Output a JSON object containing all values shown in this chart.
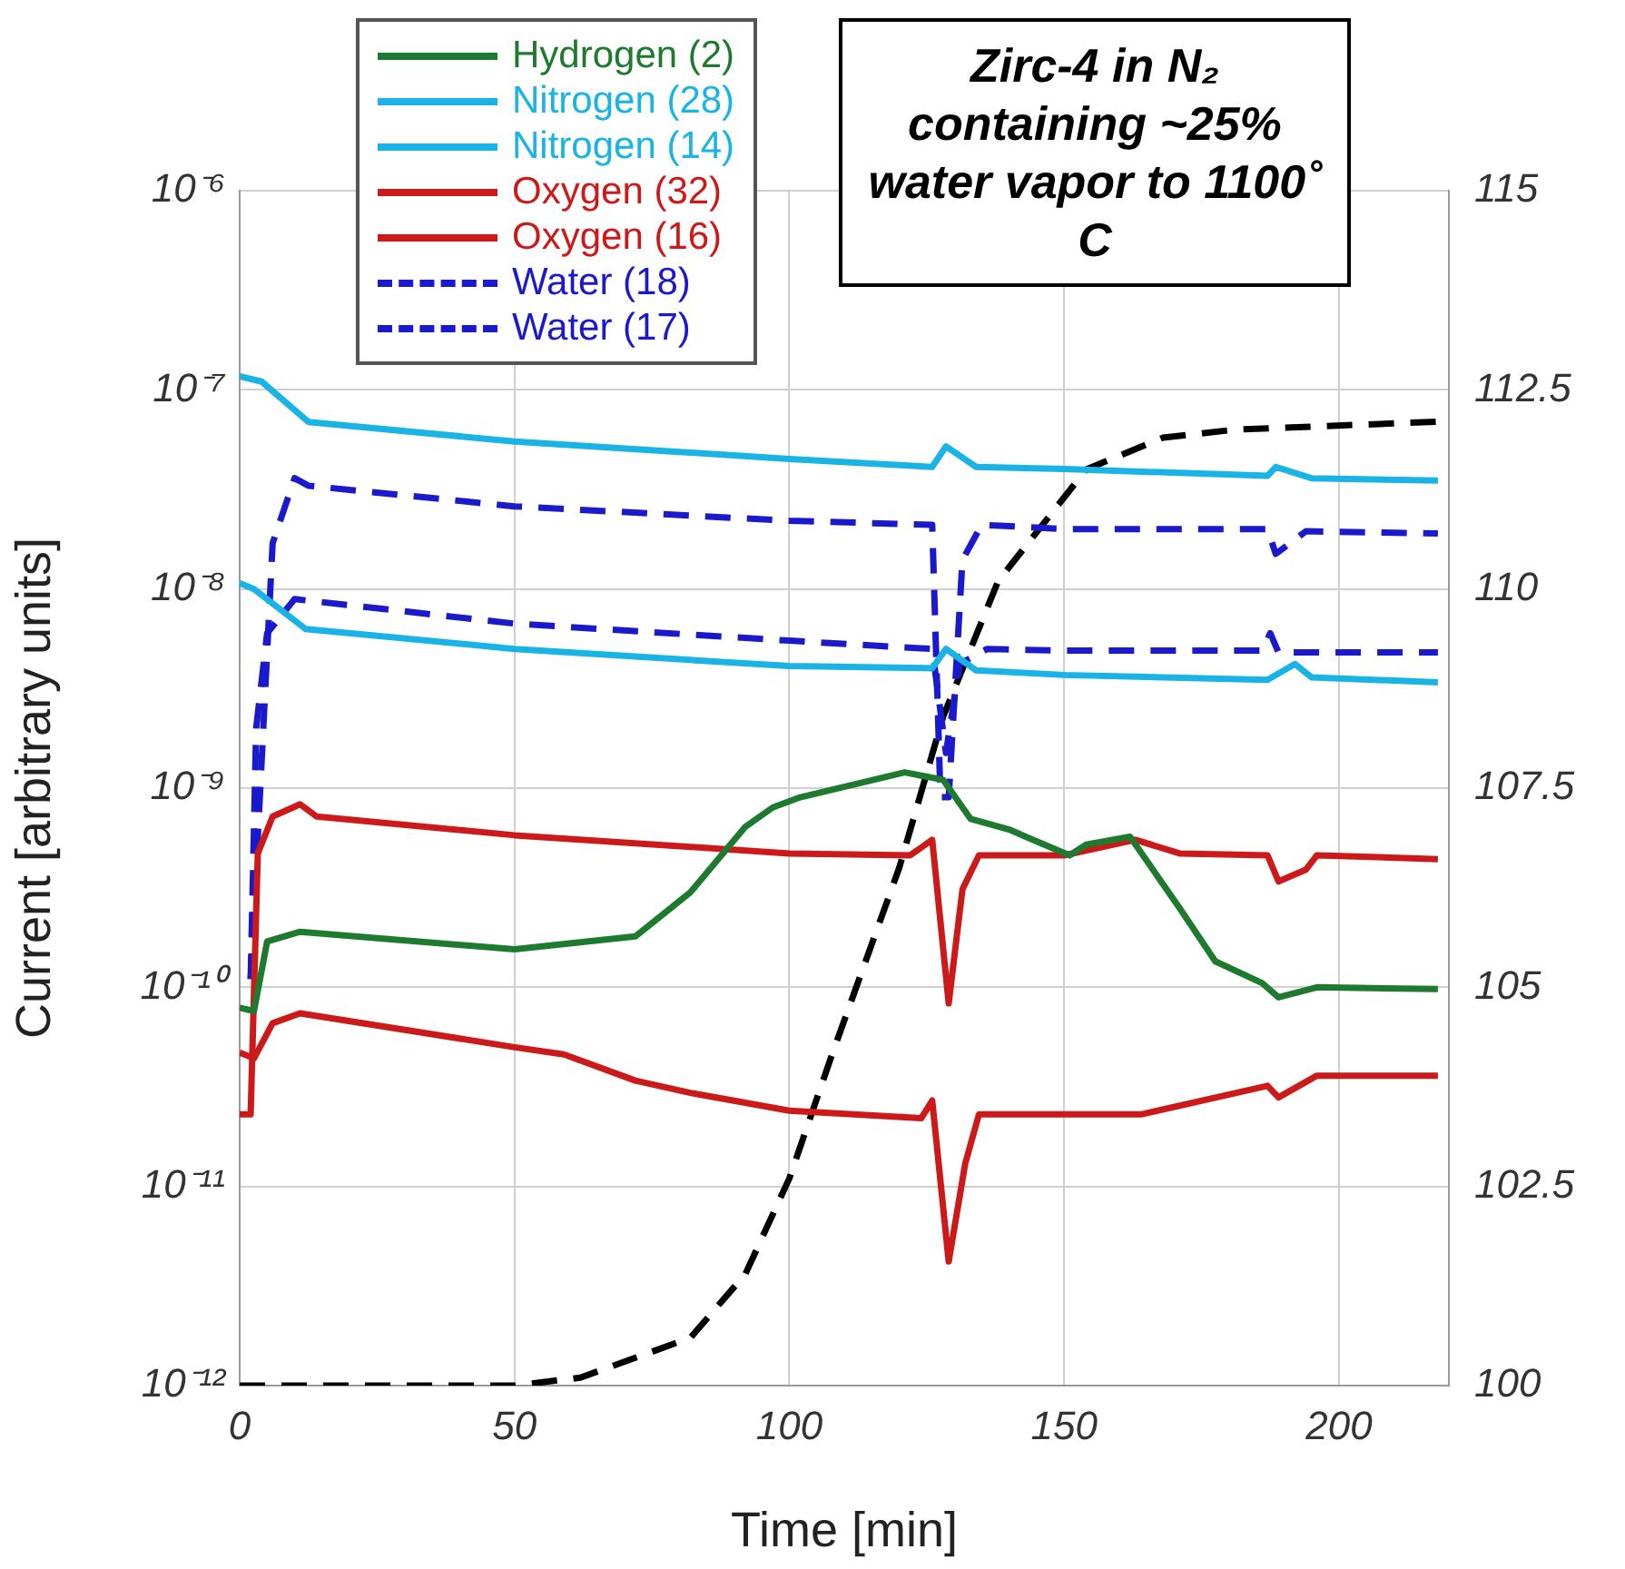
{
  "chart_data": {
    "type": "line",
    "xlabel": "Time [min]",
    "ylabel": "Current [arbitrary units]",
    "annotations": [
      "Zirc-4 in N₂ containing ~25% water vapor to 1100˚ C"
    ],
    "log": "y",
    "grid": true,
    "legend": "top left",
    "marker": "none",
    "xlim": [
      0,
      220
    ],
    "xticks": [
      0,
      50,
      100,
      150,
      200
    ],
    "ylim": [
      1e-12,
      1e-06
    ],
    "yticks": [
      {
        "value": 1e-12,
        "label": "10⁻¹²"
      },
      {
        "value": 1e-11,
        "label": "10⁻¹¹"
      },
      {
        "value": 1e-10,
        "label": "10⁻¹⁰"
      },
      {
        "value": 1e-09,
        "label": "10⁻⁹"
      },
      {
        "value": 1e-08,
        "label": "10⁻⁸"
      },
      {
        "value": 1e-07,
        "label": "10⁻⁷"
      },
      {
        "value": 1e-06,
        "label": "10⁻⁶"
      }
    ],
    "y2lim": [
      100,
      115
    ],
    "y2ticks": [
      100,
      102.5,
      105,
      107.5,
      110,
      112.5,
      115
    ],
    "series": [
      {
        "name": "Hydrogen (2)",
        "color": "#1e7a2e",
        "line_style": "solid",
        "x": [
          0,
          2.6,
          5,
          11,
          50,
          72,
          82,
          92,
          97,
          102,
          121,
          128,
          133,
          140,
          143,
          151,
          154,
          162,
          171,
          177.5,
          186,
          189,
          196,
          218
        ],
        "values": [
          7.9e-11,
          7.6e-11,
          1.7e-10,
          1.9e-10,
          1.55e-10,
          1.8e-10,
          3e-10,
          6.4e-10,
          8e-10,
          9e-10,
          1.2e-09,
          1.1e-09,
          7e-10,
          6.2e-10,
          5.7e-10,
          4.6e-10,
          5.2e-10,
          5.7e-10,
          2.5e-10,
          1.35e-10,
          1.05e-10,
          8.9e-11,
          1e-10,
          9.8e-11
        ]
      },
      {
        "name": "Nitrogen (28)",
        "color": "#1ab3e6",
        "line_style": "solid",
        "x": [
          0,
          4,
          12.5,
          50,
          100,
          126,
          128.5,
          134,
          150,
          187,
          188.5,
          195,
          218
        ],
        "values": [
          1.17e-07,
          1.1e-07,
          6.9e-08,
          5.5e-08,
          4.5e-08,
          4.1e-08,
          5.2e-08,
          4.1e-08,
          4e-08,
          3.7e-08,
          4.1e-08,
          3.6e-08,
          3.5e-08
        ]
      },
      {
        "name": "Nitrogen (14)",
        "color": "#1ab3e6",
        "line_style": "solid",
        "x": [
          0,
          2.6,
          12,
          50,
          100,
          126,
          128.5,
          134,
          150,
          187,
          192,
          195,
          218
        ],
        "values": [
          1.07e-08,
          1e-08,
          6.3e-09,
          5e-09,
          4.1e-09,
          4e-09,
          5e-09,
          3.9e-09,
          3.7e-09,
          3.5e-09,
          4.2e-09,
          3.6e-09,
          3.4e-09
        ]
      },
      {
        "name": "Oxygen (32)",
        "color": "#cc1a1a",
        "line_style": "solid",
        "x": [
          0,
          2,
          3.3,
          6,
          11,
          14,
          50,
          100,
          122,
          126,
          129,
          131.5,
          134.5,
          150,
          163,
          171,
          187,
          189,
          194,
          196,
          218
        ],
        "values": [
          2.3e-11,
          2.3e-11,
          4.7e-10,
          7.2e-10,
          8.3e-10,
          7.2e-10,
          5.8e-10,
          4.7e-10,
          4.6e-10,
          5.5e-10,
          8.3e-11,
          3.1e-10,
          4.6e-10,
          4.6e-10,
          5.5e-10,
          4.7e-10,
          4.6e-10,
          3.4e-10,
          3.9e-10,
          4.6e-10,
          4.4e-10
        ]
      },
      {
        "name": "Oxygen (16)",
        "color": "#cc1a1a",
        "line_style": "solid",
        "x": [
          0,
          2.6,
          6,
          11,
          50,
          59,
          72,
          82,
          100,
          124,
          126,
          129,
          132,
          134.5,
          150,
          164,
          187,
          189,
          196,
          218
        ],
        "values": [
          4.7e-11,
          4.4e-11,
          6.6e-11,
          7.4e-11,
          5e-11,
          4.6e-11,
          3.4e-11,
          2.95e-11,
          2.4e-11,
          2.2e-11,
          2.7e-11,
          4.2e-12,
          1.3e-11,
          2.3e-11,
          2.3e-11,
          2.3e-11,
          3.2e-11,
          2.8e-11,
          3.6e-11,
          3.6e-11
        ]
      },
      {
        "name": "Water (18)",
        "color": "#1a1acc",
        "line_style": "dashed",
        "x": [
          2,
          6,
          10,
          12.5,
          50,
          100,
          126,
          127.5,
          129,
          131.5,
          135,
          150,
          187,
          188.5,
          194,
          218
        ],
        "values": [
          1.1e-10,
          1.7e-08,
          3.6e-08,
          3.3e-08,
          2.6e-08,
          2.2e-08,
          2.1e-08,
          9e-10,
          9e-10,
          1.4e-08,
          2.1e-08,
          2e-08,
          2e-08,
          1.5e-08,
          1.95e-08,
          1.9e-08
        ]
      },
      {
        "name": "Water (17)",
        "color": "#1a1acc",
        "line_style": "dashed",
        "x": [
          2,
          3,
          5,
          10,
          50,
          100,
          126,
          128.5,
          131,
          136,
          150,
          186,
          187.5,
          189,
          218
        ],
        "values": [
          1.1e-10,
          2e-09,
          6e-09,
          8.9e-09,
          6.7e-09,
          5.5e-09,
          5e-09,
          1.5e-09,
          4.2e-09,
          5e-09,
          4.9e-09,
          4.9e-09,
          6e-09,
          4.8e-09,
          4.8e-09
        ]
      },
      {
        "color": "#000000",
        "line_style": "dashed",
        "axis": "y2",
        "x": [
          0,
          50,
          62,
          82,
          92,
          100,
          108,
          120,
          128,
          138,
          154,
          168,
          181,
          218
        ],
        "values": [
          100,
          100,
          100.1,
          100.6,
          101.4,
          102.6,
          104.2,
          106.5,
          108.4,
          110.1,
          111.5,
          111.9,
          112.0,
          112.1
        ]
      }
    ]
  }
}
